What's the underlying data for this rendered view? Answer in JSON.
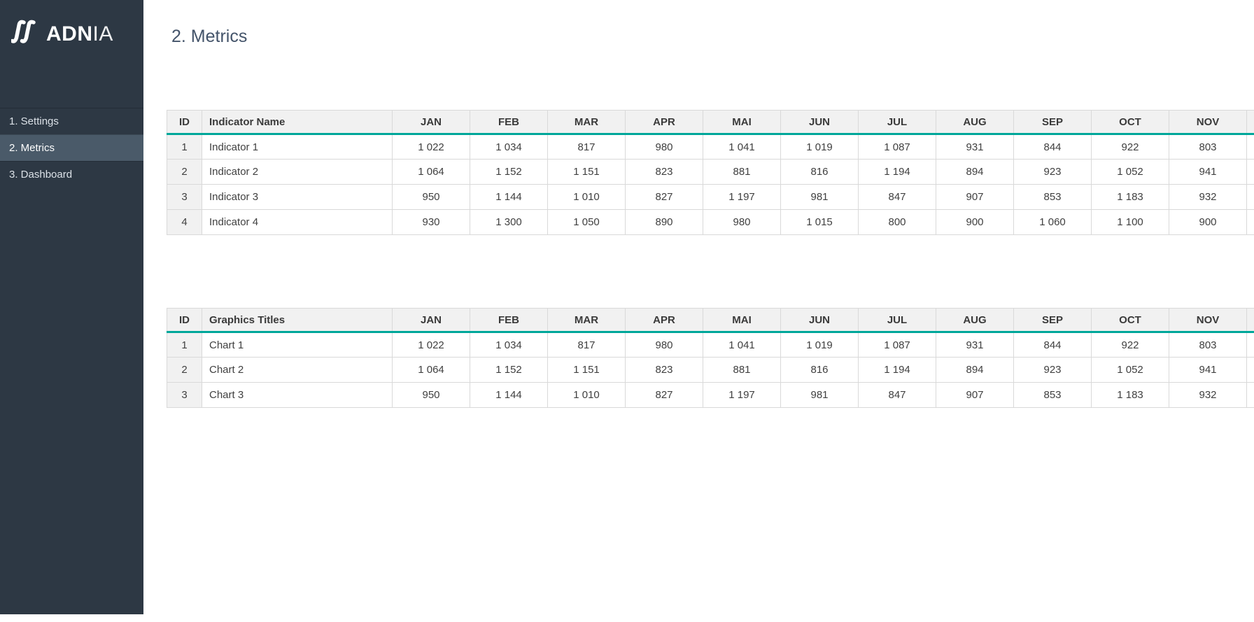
{
  "app": {
    "page_heading": "2. Metrics"
  },
  "colors": {
    "sidebar_bg": "#2d3844",
    "sidebar_selected_bg": "#4a5a69",
    "accent_teal": "#00a79a",
    "table_header_bg": "#f1f1f1",
    "grid_border": "#d9d9d9",
    "heading_color": "#44546a"
  },
  "sidebar": {
    "logo_icon": "adnia-double-slash-icon",
    "logo_text_bold": "ADN",
    "logo_text_light": "IA",
    "items": [
      {
        "label": "1. Settings",
        "selected": false
      },
      {
        "label": "2. Metrics",
        "selected": true
      },
      {
        "label": "3. Dashboard",
        "selected": false
      }
    ]
  },
  "months": [
    "JAN",
    "FEB",
    "MAR",
    "APR",
    "MAI",
    "JUN",
    "JUL",
    "AUG",
    "SEP",
    "OCT",
    "NOV"
  ],
  "tables": [
    {
      "id_header": "ID",
      "name_header": "Indicator Name",
      "rows": [
        {
          "id": "1",
          "name": "Indicator 1",
          "values": [
            "1 022",
            "1 034",
            "817",
            "980",
            "1 041",
            "1 019",
            "1 087",
            "931",
            "844",
            "922",
            "803"
          ]
        },
        {
          "id": "2",
          "name": "Indicator 2",
          "values": [
            "1 064",
            "1 152",
            "1 151",
            "823",
            "881",
            "816",
            "1 194",
            "894",
            "923",
            "1 052",
            "941"
          ]
        },
        {
          "id": "3",
          "name": "Indicator 3",
          "values": [
            "950",
            "1 144",
            "1 010",
            "827",
            "1 197",
            "981",
            "847",
            "907",
            "853",
            "1 183",
            "932"
          ]
        },
        {
          "id": "4",
          "name": "Indicator 4",
          "values": [
            "930",
            "1 300",
            "1 050",
            "890",
            "980",
            "1 015",
            "800",
            "900",
            "1 060",
            "1 100",
            "900"
          ]
        }
      ]
    },
    {
      "id_header": "ID",
      "name_header": "Graphics Titles",
      "rows": [
        {
          "id": "1",
          "name": "Chart 1",
          "values": [
            "1 022",
            "1 034",
            "817",
            "980",
            "1 041",
            "1 019",
            "1 087",
            "931",
            "844",
            "922",
            "803"
          ]
        },
        {
          "id": "2",
          "name": "Chart 2",
          "values": [
            "1 064",
            "1 152",
            "1 151",
            "823",
            "881",
            "816",
            "1 194",
            "894",
            "923",
            "1 052",
            "941"
          ]
        },
        {
          "id": "3",
          "name": "Chart 3",
          "values": [
            "950",
            "1 144",
            "1 010",
            "827",
            "1 197",
            "981",
            "847",
            "907",
            "853",
            "1 183",
            "932"
          ]
        }
      ]
    }
  ]
}
